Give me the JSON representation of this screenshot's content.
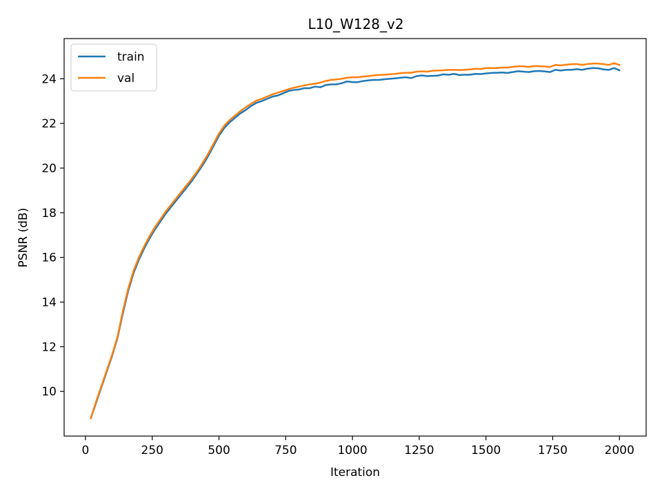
{
  "chart_data": {
    "type": "line",
    "title": "L10_W128_v2",
    "xlabel": "Iteration",
    "ylabel": "PSNR (dB)",
    "xlim": [
      -80,
      2100
    ],
    "ylim": [
      8,
      25.8
    ],
    "xticks": [
      0,
      250,
      500,
      750,
      1000,
      1250,
      1500,
      1750,
      2000
    ],
    "yticks": [
      10,
      12,
      14,
      16,
      18,
      20,
      22,
      24
    ],
    "legend": "top-left",
    "grid": false,
    "series": [
      {
        "name": "train",
        "color": "#1f77b4",
        "x": [
          20,
          40,
          60,
          80,
          100,
          120,
          140,
          160,
          180,
          200,
          220,
          240,
          260,
          280,
          300,
          320,
          340,
          360,
          380,
          400,
          420,
          440,
          460,
          480,
          500,
          520,
          540,
          560,
          580,
          600,
          620,
          640,
          660,
          680,
          700,
          720,
          740,
          760,
          780,
          800,
          820,
          840,
          860,
          880,
          900,
          920,
          940,
          960,
          980,
          1000,
          1020,
          1040,
          1060,
          1080,
          1100,
          1120,
          1140,
          1160,
          1180,
          1200,
          1220,
          1240,
          1260,
          1280,
          1300,
          1320,
          1340,
          1360,
          1380,
          1400,
          1420,
          1440,
          1460,
          1480,
          1500,
          1520,
          1540,
          1560,
          1580,
          1600,
          1620,
          1640,
          1660,
          1680,
          1700,
          1720,
          1740,
          1760,
          1780,
          1800,
          1820,
          1840,
          1860,
          1880,
          1900,
          1920,
          1940,
          1960,
          1980,
          2000
        ],
        "values": [
          8.8,
          9.5,
          10.2,
          10.9,
          11.6,
          12.4,
          13.5,
          14.5,
          15.3,
          15.9,
          16.4,
          16.85,
          17.25,
          17.6,
          17.95,
          18.25,
          18.55,
          18.85,
          19.15,
          19.45,
          19.8,
          20.15,
          20.55,
          21.0,
          21.45,
          21.8,
          22.05,
          22.25,
          22.45,
          22.6,
          22.78,
          22.92,
          23.0,
          23.1,
          23.2,
          23.25,
          23.35,
          23.45,
          23.5,
          23.52,
          23.58,
          23.58,
          23.65,
          23.62,
          23.72,
          23.75,
          23.75,
          23.8,
          23.88,
          23.85,
          23.85,
          23.9,
          23.93,
          23.95,
          23.95,
          23.98,
          24.0,
          24.02,
          24.05,
          24.07,
          24.03,
          24.12,
          24.15,
          24.12,
          24.13,
          24.14,
          24.2,
          24.18,
          24.22,
          24.17,
          24.18,
          24.18,
          24.22,
          24.21,
          24.24,
          24.26,
          24.27,
          24.28,
          24.26,
          24.3,
          24.34,
          24.32,
          24.3,
          24.34,
          24.35,
          24.33,
          24.3,
          24.4,
          24.37,
          24.4,
          24.4,
          24.43,
          24.4,
          24.45,
          24.48,
          24.47,
          24.42,
          24.4,
          24.48,
          24.38
        ]
      },
      {
        "name": "val",
        "color": "#ff7f0e",
        "x": [
          20,
          40,
          60,
          80,
          100,
          120,
          140,
          160,
          180,
          200,
          220,
          240,
          260,
          280,
          300,
          320,
          340,
          360,
          380,
          400,
          420,
          440,
          460,
          480,
          500,
          520,
          540,
          560,
          580,
          600,
          620,
          640,
          660,
          680,
          700,
          720,
          740,
          760,
          780,
          800,
          820,
          840,
          860,
          880,
          900,
          920,
          940,
          960,
          980,
          1000,
          1020,
          1040,
          1060,
          1080,
          1100,
          1120,
          1140,
          1160,
          1180,
          1200,
          1220,
          1240,
          1260,
          1280,
          1300,
          1320,
          1340,
          1360,
          1380,
          1400,
          1420,
          1440,
          1460,
          1480,
          1500,
          1520,
          1540,
          1560,
          1580,
          1600,
          1620,
          1640,
          1660,
          1680,
          1700,
          1720,
          1740,
          1760,
          1780,
          1800,
          1820,
          1840,
          1860,
          1880,
          1900,
          1920,
          1940,
          1960,
          1980,
          2000
        ],
        "values": [
          8.8,
          9.55,
          10.25,
          10.95,
          11.65,
          12.45,
          13.6,
          14.6,
          15.4,
          16.0,
          16.5,
          16.95,
          17.35,
          17.7,
          18.05,
          18.35,
          18.65,
          18.95,
          19.25,
          19.55,
          19.88,
          20.25,
          20.65,
          21.1,
          21.55,
          21.9,
          22.15,
          22.35,
          22.55,
          22.72,
          22.88,
          23.02,
          23.1,
          23.2,
          23.3,
          23.38,
          23.45,
          23.53,
          23.6,
          23.65,
          23.7,
          23.75,
          23.78,
          23.83,
          23.9,
          23.95,
          23.97,
          24.0,
          24.05,
          24.07,
          24.07,
          24.1,
          24.12,
          24.15,
          24.17,
          24.18,
          24.2,
          24.22,
          24.25,
          24.27,
          24.27,
          24.32,
          24.33,
          24.32,
          24.36,
          24.37,
          24.38,
          24.4,
          24.4,
          24.39,
          24.4,
          24.42,
          24.45,
          24.44,
          24.48,
          24.48,
          24.48,
          24.5,
          24.5,
          24.53,
          24.56,
          24.56,
          24.53,
          24.57,
          24.56,
          24.55,
          24.53,
          24.62,
          24.6,
          24.63,
          24.65,
          24.66,
          24.62,
          24.66,
          24.68,
          24.68,
          24.66,
          24.62,
          24.7,
          24.62
        ]
      }
    ]
  }
}
